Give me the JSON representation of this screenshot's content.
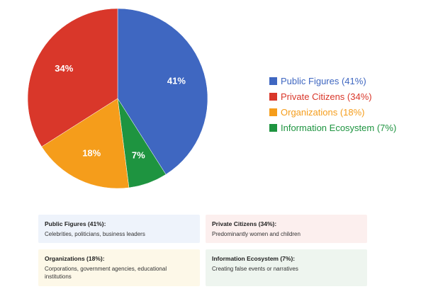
{
  "chart_data": {
    "type": "pie",
    "title": "",
    "slices": [
      {
        "label": "41%",
        "value": 41,
        "color": "#3f67c1"
      },
      {
        "label": "7%",
        "value": 7,
        "color": "#1e9440"
      },
      {
        "label": "18%",
        "value": 18,
        "color": "#f59d1b"
      },
      {
        "label": "34%",
        "value": 34,
        "color": "#d9372a"
      }
    ],
    "legend": {
      "placement": "right",
      "entries": [
        {
          "label": "Public Figures (41%)",
          "color": "#3f67c1"
        },
        {
          "label": "Private Citizens (34%)",
          "color": "#d9372a"
        },
        {
          "label": "Organizations (18%)",
          "color": "#f59d1b"
        },
        {
          "label": "Information Ecosystem (7%)",
          "color": "#1e9440"
        }
      ]
    }
  },
  "cards": [
    {
      "title": "Public Figures (41%):",
      "text": "Celebrities, politicians, business leaders",
      "bg": "#eef3fb"
    },
    {
      "title": "Private Citizens (34%):",
      "text": "Predominantly women and children",
      "bg": "#fcefee"
    },
    {
      "title": "Organizations (18%):",
      "text": "Corporations, government agencies, educational institutions",
      "bg": "#fdf8e8"
    },
    {
      "title": "Information Ecosystem (7%):",
      "text": "Creating false events or narratives",
      "bg": "#eef5ef"
    }
  ]
}
